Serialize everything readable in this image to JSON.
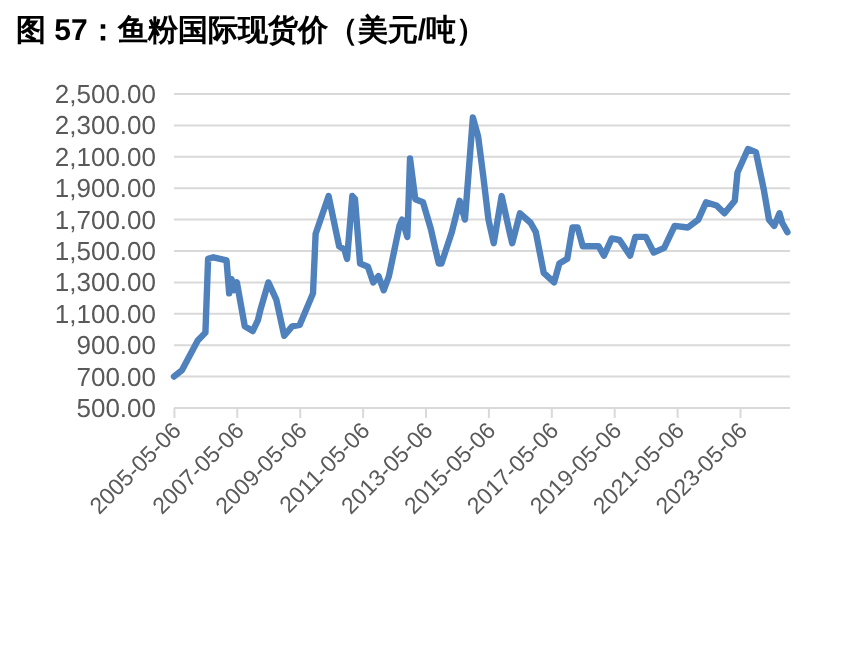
{
  "chart_data": {
    "type": "line",
    "title": "图 57：鱼粉国际现货价（美元/吨）",
    "x": [
      "2005-05",
      "2005-08",
      "2006-02",
      "2006-05",
      "2006-06",
      "2006-08",
      "2007-01",
      "2007-02",
      "2007-03",
      "2007-04",
      "2007-05",
      "2007-08",
      "2007-11",
      "2008-01",
      "2008-02",
      "2008-05",
      "2008-08",
      "2008-11",
      "2009-02",
      "2009-05",
      "2009-10",
      "2009-11",
      "2010-04",
      "2010-07",
      "2010-08",
      "2010-10",
      "2010-11",
      "2011-01",
      "2011-02",
      "2011-04",
      "2011-07",
      "2011-09",
      "2011-11",
      "2012-01",
      "2012-03",
      "2012-07",
      "2012-08",
      "2012-10",
      "2012-11",
      "2013-01",
      "2013-04",
      "2013-07",
      "2013-09",
      "2013-10",
      "2013-11",
      "2014-03",
      "2014-06",
      "2014-08",
      "2014-11",
      "2015-01",
      "2015-03",
      "2015-05",
      "2015-07",
      "2015-10",
      "2016-01",
      "2016-02",
      "2016-05",
      "2016-09",
      "2016-11",
      "2017-02",
      "2017-06",
      "2017-08",
      "2017-11",
      "2018-01",
      "2018-03",
      "2018-05",
      "2018-11",
      "2019-01",
      "2019-04",
      "2019-07",
      "2019-11",
      "2020-01",
      "2020-05",
      "2020-08",
      "2020-12",
      "2021-04",
      "2021-09",
      "2022-01",
      "2022-04",
      "2022-08",
      "2022-11",
      "2023-03",
      "2023-04",
      "2023-08",
      "2023-11",
      "2024-02",
      "2024-04",
      "2024-06",
      "2024-08",
      "2024-09",
      "2024-11"
    ],
    "values": [
      700,
      740,
      930,
      980,
      1450,
      1460,
      1440,
      1230,
      1320,
      1250,
      1300,
      1020,
      990,
      1060,
      1130,
      1300,
      1190,
      960,
      1020,
      1030,
      1230,
      1610,
      1850,
      1610,
      1530,
      1510,
      1450,
      1850,
      1830,
      1420,
      1400,
      1300,
      1340,
      1250,
      1340,
      1660,
      1700,
      1590,
      2090,
      1830,
      1810,
      1640,
      1490,
      1420,
      1420,
      1620,
      1820,
      1700,
      2350,
      2230,
      1980,
      1700,
      1550,
      1850,
      1620,
      1550,
      1740,
      1680,
      1620,
      1360,
      1300,
      1420,
      1450,
      1650,
      1650,
      1530,
      1530,
      1470,
      1580,
      1570,
      1470,
      1590,
      1590,
      1490,
      1520,
      1660,
      1650,
      1700,
      1810,
      1790,
      1740,
      1820,
      2000,
      2150,
      2130,
      1890,
      1700,
      1660,
      1740,
      1680,
      1620
    ],
    "color": "#4f81bd",
    "xlim": [
      "2005-05",
      "2024-12"
    ],
    "xticks": [
      "2005-05-06",
      "2007-05-06",
      "2009-05-06",
      "2011-05-06",
      "2013-05-06",
      "2015-05-06",
      "2017-05-06",
      "2019-05-06",
      "2021-05-06",
      "2023-05-06"
    ],
    "ylim": [
      500,
      2500
    ],
    "yticks": [
      {
        "value": 500,
        "label": "500.00"
      },
      {
        "value": 700,
        "label": "700.00"
      },
      {
        "value": 900,
        "label": "900.00"
      },
      {
        "value": 1100,
        "label": "1,100.00"
      },
      {
        "value": 1300,
        "label": "1,300.00"
      },
      {
        "value": 1500,
        "label": "1,500.00"
      },
      {
        "value": 1700,
        "label": "1,700.00"
      },
      {
        "value": 1900,
        "label": "1,900.00"
      },
      {
        "value": 2100,
        "label": "2,100.00"
      },
      {
        "value": 2300,
        "label": "2,300.00"
      },
      {
        "value": 2500,
        "label": "2,500.00"
      }
    ],
    "grid": "y",
    "marker": "none",
    "line_style": "solid"
  }
}
